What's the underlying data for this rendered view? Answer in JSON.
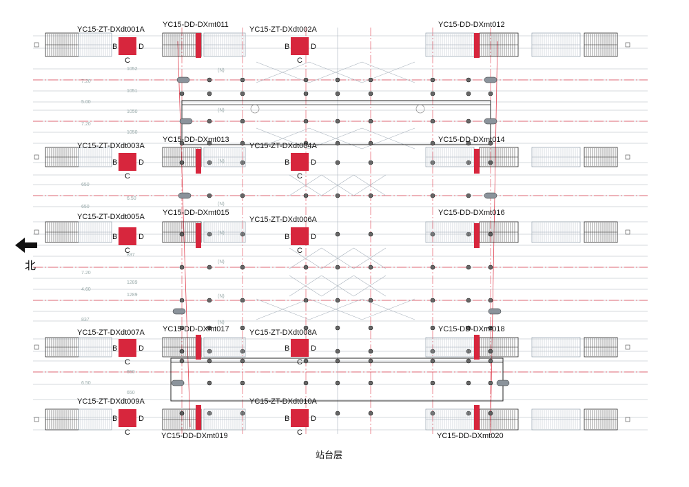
{
  "title": "站台层",
  "north_label": "北",
  "face_letters": {
    "b": "B",
    "d": "D",
    "c": "C"
  },
  "colors": {
    "accent": "#d7263d",
    "line": "#e04050",
    "structure": "#222222",
    "faint": "#a9b3bd"
  },
  "icons": {
    "north_arrow": "arrow-left-icon"
  },
  "devices_zt": [
    "YC15-ZT-DXdt001A",
    "YC15-ZT-DXdt002A",
    "YC15-ZT-DXdt003A",
    "YC15-ZT-DXdt004A",
    "YC15-ZT-DXdt005A",
    "YC15-ZT-DXdt006A",
    "YC15-ZT-DXdt007A",
    "YC15-ZT-DXdt008A",
    "YC15-ZT-DXdt009A",
    "YC15-ZT-DXdt010A"
  ],
  "devices_dd": [
    "YC15-DD-DXmt011",
    "YC15-DD-DXmt012",
    "YC15-DD-DXmt013",
    "YC15-DD-DXmt014",
    "YC15-DD-DXmt015",
    "YC15-DD-DXmt016",
    "YC15-DD-DXmt017",
    "YC15-DD-DXmt018",
    "YC15-DD-DXmt019",
    "YC15-DD-DXmt020"
  ],
  "dimensions": [
    "1052",
    "7.20",
    "1051",
    "5.00",
    "1050",
    "7.20",
    "1050",
    "650",
    "6.50",
    "650",
    "837",
    "7.20",
    "1289",
    "4.60",
    "1289",
    "837",
    "650",
    "6.50",
    "650"
  ],
  "column_tag": "(N)"
}
